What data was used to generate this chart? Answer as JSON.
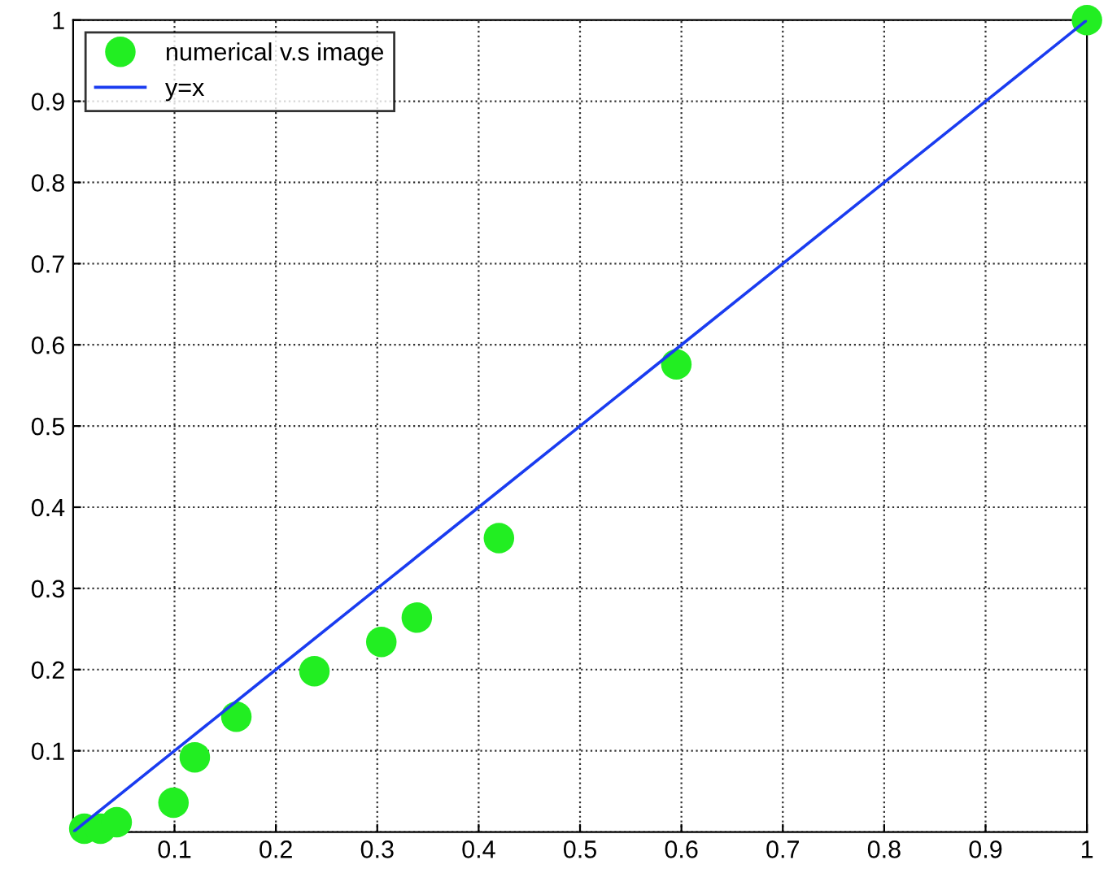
{
  "chart_data": {
    "type": "scatter",
    "xlim": [
      0,
      1
    ],
    "ylim": [
      0,
      1
    ],
    "xticks": [
      {
        "value": 0,
        "label": null
      },
      0.1,
      0.2,
      0.3,
      0.4,
      0.5,
      0.6,
      0.7,
      0.8,
      0.9,
      1
    ],
    "yticks": [
      {
        "value": 0,
        "label": null
      },
      0.1,
      0.2,
      0.3,
      0.4,
      0.5,
      0.6,
      0.7,
      0.8,
      0.9,
      1
    ],
    "grid": true,
    "legend": "top left",
    "series": [
      {
        "name": "numerical v.s image",
        "marker": "circle",
        "color": "#22ee22",
        "x": [
          0.011,
          0.027,
          0.043,
          0.099,
          0.12,
          0.161,
          0.238,
          0.304,
          0.339,
          0.42,
          0.595,
          1.0
        ],
        "values": [
          0.004,
          0.004,
          0.012,
          0.036,
          0.092,
          0.142,
          0.198,
          0.234,
          0.264,
          0.362,
          0.576,
          1.0
        ]
      },
      {
        "name": "y=x",
        "type": "line",
        "color": "#1a3cf0",
        "line_style": "solid",
        "x": [
          0,
          0.1,
          0.2,
          0.3,
          0.4,
          0.5,
          0.6,
          0.7,
          0.8,
          0.9,
          1
        ],
        "values": [
          0,
          0.1,
          0.2,
          0.3,
          0.4,
          0.5,
          0.6,
          0.7,
          0.8,
          0.9,
          1
        ]
      }
    ]
  }
}
